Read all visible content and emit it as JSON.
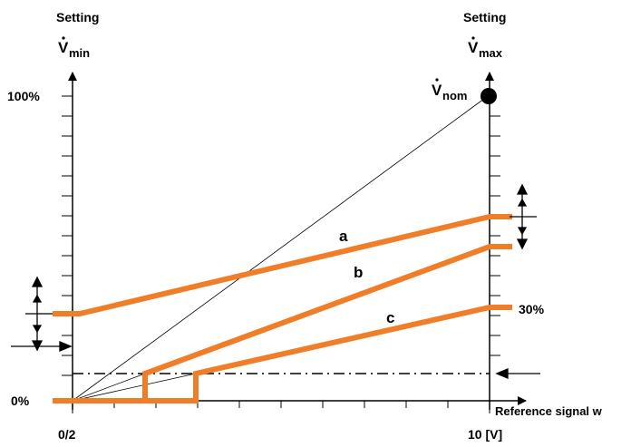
{
  "left_axis": {
    "setting_label": "Setting",
    "symbol": "V",
    "subscript": "min"
  },
  "right_axis": {
    "setting_label": "Setting",
    "symbol": "V",
    "subscript": "max"
  },
  "nominal_point": {
    "symbol": "V",
    "subscript": "nom"
  },
  "y_ticks": {
    "top": "100%",
    "bottom": "0%"
  },
  "x_ticks": {
    "left": "0/2",
    "right": "10 [V]"
  },
  "x_axis_label": "Reference signal w",
  "curves": {
    "a": "a",
    "b": "b",
    "c": "c"
  },
  "percent_30": "30%",
  "colors": {
    "curve": "#F07D27",
    "axis": "#000000"
  }
}
